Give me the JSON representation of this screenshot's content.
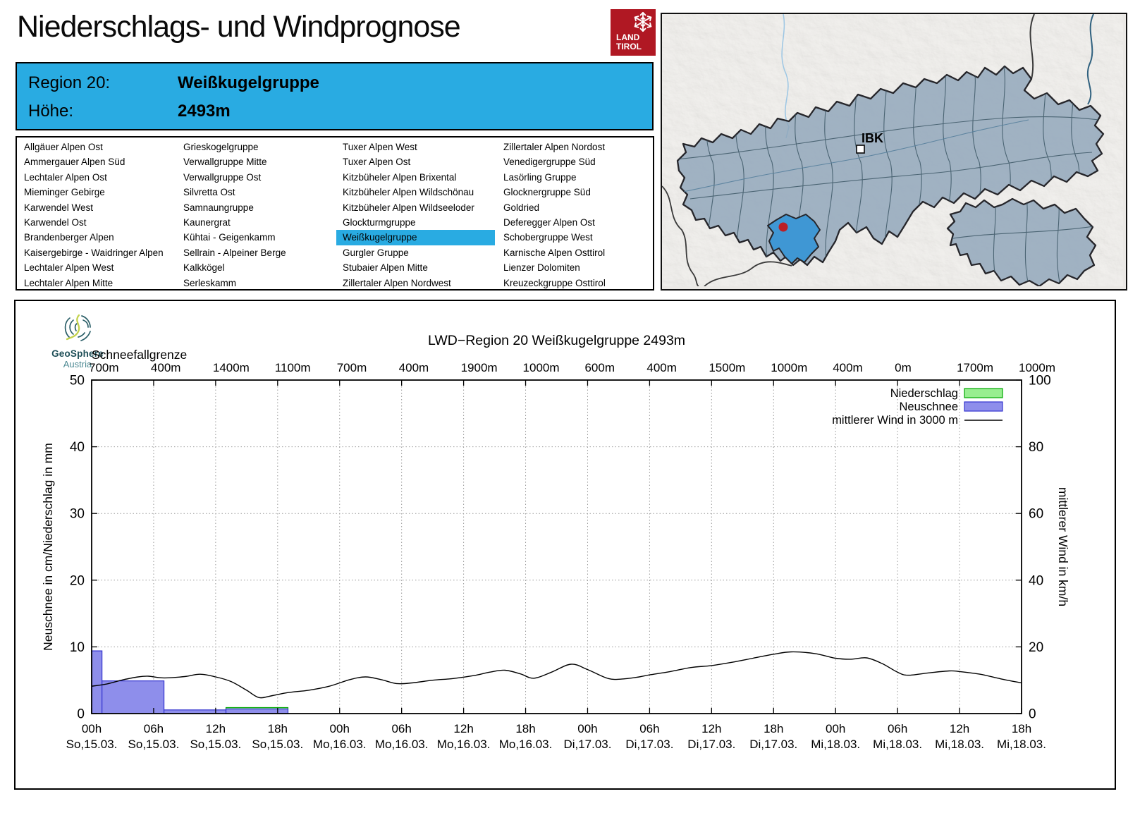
{
  "header": {
    "title": "Niederschlags- und Windprognose",
    "logo": {
      "line1": "LAND",
      "line2": "TIROL"
    }
  },
  "region_info": {
    "region_label": "Region 20:",
    "region_value": "Weißkugelgruppe",
    "altitude_label": "Höhe:",
    "altitude_value": "2493m",
    "accent_color": "#29ABE2"
  },
  "region_list": {
    "selected": "Weißkugelgruppe",
    "columns": [
      [
        "Allgäuer Alpen Ost",
        "Ammergauer Alpen Süd",
        "Lechtaler Alpen Ost",
        "Mieminger Gebirge",
        "Karwendel West",
        "Karwendel Ost",
        "Brandenberger Alpen",
        "Kaisergebirge - Waidringer Alpen",
        "Lechtaler Alpen West",
        "Lechtaler Alpen Mitte"
      ],
      [
        "Grieskogelgruppe",
        "Verwallgruppe Mitte",
        "Verwallgruppe Ost",
        "Silvretta Ost",
        "Samnaungruppe",
        "Kaunergrat",
        "Kühtai - Geigenkamm",
        "Sellrain - Alpeiner Berge",
        "Kalkkögel",
        "Serleskamm"
      ],
      [
        "Tuxer Alpen West",
        "Tuxer Alpen Ost",
        "Kitzbüheler Alpen Brixental",
        "Kitzbüheler Alpen Wildschönau",
        "Kitzbüheler Alpen Wildseeloder",
        "Glockturmgruppe",
        "Weißkugelgruppe",
        "Gurgler Gruppe",
        "Stubaier Alpen Mitte",
        "Zillertaler Alpen Nordwest"
      ],
      [
        "Zillertaler Alpen Nordost",
        "Venedigergruppe Süd",
        "Lasörling Gruppe",
        "Glocknergruppe Süd",
        "Goldried",
        "Deferegger Alpen Ost",
        "Schobergruppe West",
        "Karnische Alpen Osttirol",
        "Lienzer Dolomiten",
        "Kreuzeckgruppe Osttirol"
      ]
    ]
  },
  "map": {
    "city_label": "IBK",
    "region_fill": "#8FA5BA",
    "highlight_fill": "#3F97D4",
    "marker_color": "#BB1F26"
  },
  "branding": {
    "geosphere_line1": "GeoSphere",
    "geosphere_line2": "Austria"
  },
  "chart_data": {
    "type": "bar+line",
    "title": "LWD−Region 20 Weißkugelgruppe 2493m",
    "snowline_header": "Schneefallgrenze",
    "y_left": {
      "label": "Neuschnee in cm/Niederschlag in mm",
      "ticks": [
        0,
        10,
        20,
        30,
        40,
        50
      ],
      "range": [
        0,
        50
      ]
    },
    "y_right": {
      "label": "mittlerer Wind in km/h",
      "ticks": [
        0,
        20,
        40,
        60,
        80,
        100
      ],
      "range": [
        0,
        100
      ]
    },
    "x_hours_range": [
      0,
      90
    ],
    "grid": "dotted",
    "legend_position": "top-right",
    "x_ticks": [
      {
        "hour": 0,
        "time": "00h",
        "date": "So,15.03.",
        "snowline": "700m"
      },
      {
        "hour": 6,
        "time": "06h",
        "date": "So,15.03.",
        "snowline": "400m"
      },
      {
        "hour": 12,
        "time": "12h",
        "date": "So,15.03.",
        "snowline": "1400m"
      },
      {
        "hour": 18,
        "time": "18h",
        "date": "So,15.03.",
        "snowline": "1100m"
      },
      {
        "hour": 24,
        "time": "00h",
        "date": "Mo,16.03.",
        "snowline": "700m"
      },
      {
        "hour": 30,
        "time": "06h",
        "date": "Mo,16.03.",
        "snowline": "400m"
      },
      {
        "hour": 36,
        "time": "12h",
        "date": "Mo,16.03.",
        "snowline": "1900m"
      },
      {
        "hour": 42,
        "time": "18h",
        "date": "Mo,16.03.",
        "snowline": "1000m"
      },
      {
        "hour": 48,
        "time": "00h",
        "date": "Di,17.03.",
        "snowline": "600m"
      },
      {
        "hour": 54,
        "time": "06h",
        "date": "Di,17.03.",
        "snowline": "400m"
      },
      {
        "hour": 60,
        "time": "12h",
        "date": "Di,17.03.",
        "snowline": "1500m"
      },
      {
        "hour": 66,
        "time": "18h",
        "date": "Di,17.03.",
        "snowline": "1000m"
      },
      {
        "hour": 72,
        "time": "00h",
        "date": "Mi,18.03.",
        "snowline": "400m"
      },
      {
        "hour": 78,
        "time": "06h",
        "date": "Mi,18.03.",
        "snowline": "0m"
      },
      {
        "hour": 84,
        "time": "12h",
        "date": "Mi,18.03.",
        "snowline": "1700m"
      },
      {
        "hour": 90,
        "time": "18h",
        "date": "Mi,18.03.",
        "snowline": "1000m"
      }
    ],
    "legend": [
      {
        "label": "Niederschlag",
        "type": "box",
        "fill": "#98EE90",
        "stroke": "#00A800"
      },
      {
        "label": "Neuschnee",
        "type": "box",
        "fill": "#8E8EEB",
        "stroke": "#3434CF"
      },
      {
        "label": "mittlerer Wind in 3000 m",
        "type": "line",
        "stroke": "#000000"
      }
    ],
    "niederschlag_bars_mm": [
      {
        "from_hour": 13,
        "to_hour": 19,
        "value": 0.9
      }
    ],
    "neuschnee_bars_cm": [
      {
        "from_hour": 0,
        "to_hour": 1,
        "value": 9.4
      },
      {
        "from_hour": 1,
        "to_hour": 7,
        "value": 4.9
      },
      {
        "from_hour": 7,
        "to_hour": 13,
        "value": 0.55
      },
      {
        "from_hour": 13,
        "to_hour": 19,
        "value": 0.7
      }
    ],
    "wind_kmh": [
      [
        0,
        8.2
      ],
      [
        1.5,
        8.9
      ],
      [
        3,
        10.1
      ],
      [
        4.5,
        11.0
      ],
      [
        5.5,
        11.2
      ],
      [
        7,
        10.7
      ],
      [
        9,
        11.1
      ],
      [
        10.5,
        11.8
      ],
      [
        12,
        11.0
      ],
      [
        13.5,
        9.6
      ],
      [
        15,
        7.0
      ],
      [
        16.2,
        4.8
      ],
      [
        17.5,
        5.4
      ],
      [
        19,
        6.3
      ],
      [
        21,
        7.0
      ],
      [
        23,
        8.2
      ],
      [
        25,
        10.2
      ],
      [
        26.5,
        11.0
      ],
      [
        28,
        10.2
      ],
      [
        29.5,
        9.0
      ],
      [
        31,
        9.2
      ],
      [
        33,
        10.0
      ],
      [
        35,
        10.5
      ],
      [
        37,
        11.4
      ],
      [
        38.5,
        12.4
      ],
      [
        40,
        13.0
      ],
      [
        41.5,
        11.9
      ],
      [
        42.8,
        10.6
      ],
      [
        44.5,
        12.4
      ],
      [
        46.4,
        14.8
      ],
      [
        48,
        13.2
      ],
      [
        50,
        10.5
      ],
      [
        51.5,
        10.4
      ],
      [
        53,
        11.0
      ],
      [
        54,
        11.6
      ],
      [
        56,
        12.6
      ],
      [
        58,
        13.8
      ],
      [
        60,
        14.4
      ],
      [
        62,
        15.4
      ],
      [
        64,
        16.6
      ],
      [
        66,
        17.8
      ],
      [
        67.7,
        18.5
      ],
      [
        70,
        18.0
      ],
      [
        72,
        16.6
      ],
      [
        73.5,
        16.3
      ],
      [
        75,
        16.7
      ],
      [
        76.5,
        15.0
      ],
      [
        78,
        12.4
      ],
      [
        79,
        11.5
      ],
      [
        81,
        12.2
      ],
      [
        83,
        12.8
      ],
      [
        84,
        12.6
      ],
      [
        86,
        11.8
      ],
      [
        88,
        10.4
      ],
      [
        90,
        9.2
      ]
    ]
  }
}
